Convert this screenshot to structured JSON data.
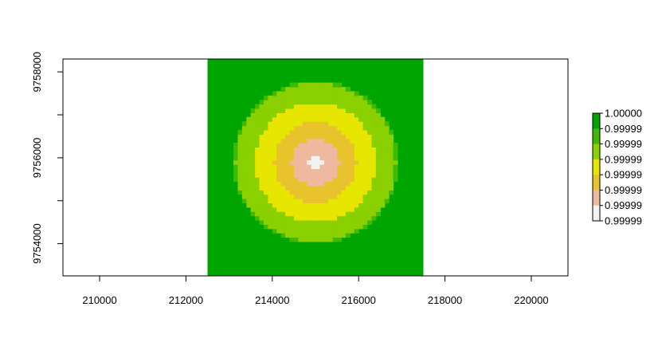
{
  "chart_data": {
    "type": "heatmap",
    "title": "",
    "xlabel": "",
    "ylabel": "",
    "xlim": [
      209150,
      220850
    ],
    "ylim": [
      9753250,
      9758300
    ],
    "x_ticks": [
      210000,
      212000,
      214000,
      216000,
      218000,
      220000
    ],
    "x_tick_labels": [
      "210000",
      "212000",
      "214000",
      "216000",
      "218000",
      "220000"
    ],
    "y_ticks": [
      9754000,
      9756000,
      9758000
    ],
    "y_tick_labels": [
      "9754000",
      "9756000",
      "9758000"
    ],
    "y_minor_ticks": [
      9755000,
      9757000
    ],
    "raster": {
      "xmin": 212500,
      "xmax": 217500,
      "ymin": 9753250,
      "ymax": 9758300,
      "center_x": 215000,
      "center_y": 9755900,
      "cell_size": 100,
      "rings": [
        {
          "max_distance": 150,
          "color": "#f2f2f2"
        },
        {
          "max_distance": 550,
          "color": "#eeb99f"
        },
        {
          "max_distance": 950,
          "color": "#e8c32e"
        },
        {
          "max_distance": 1400,
          "color": "#e6e600"
        },
        {
          "max_distance": 1850,
          "color": "#8bd000"
        },
        {
          "max_distance": 1900,
          "color": "#3ebb00"
        },
        {
          "max_distance": 999999,
          "color": "#00a600"
        }
      ]
    },
    "legend": {
      "position": "right",
      "labels": [
        "1.00000",
        "0.99999",
        "0.99999",
        "0.99999",
        "0.99999",
        "0.99999",
        "0.99999",
        "0.99999"
      ],
      "colors": [
        "#00a600",
        "#3ebb00",
        "#8bd000",
        "#e6e600",
        "#e8c32e",
        "#eeb99f",
        "#f2f2f2"
      ]
    },
    "grid": false
  }
}
